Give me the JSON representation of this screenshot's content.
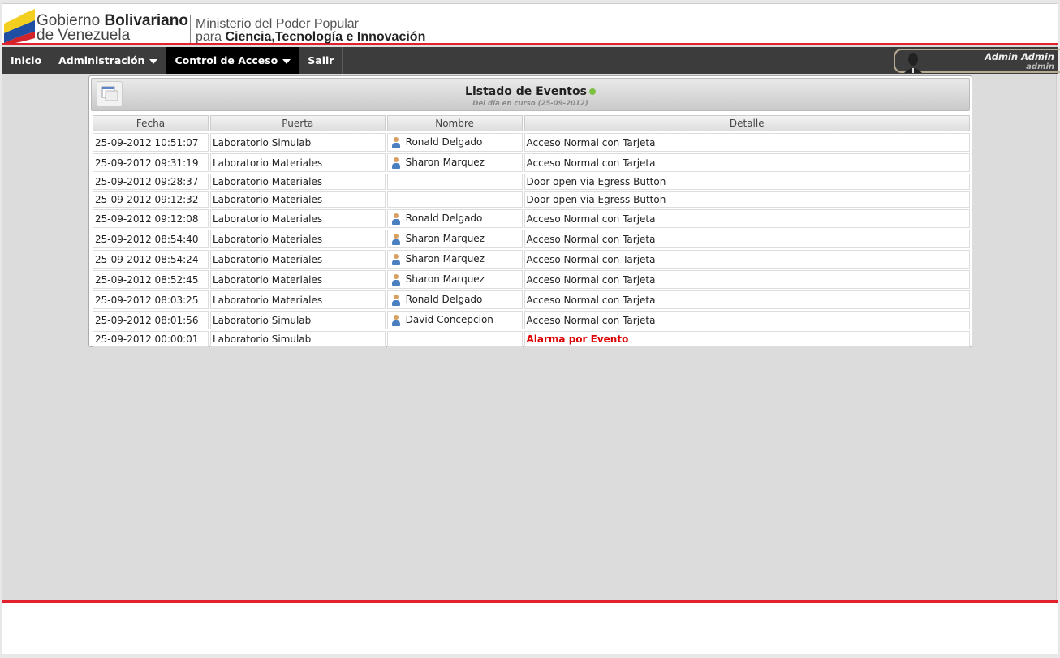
{
  "header": {
    "gov_line1_a": "Gobierno ",
    "gov_line1_b": "Bolivariano",
    "gov_line2": "de Venezuela",
    "min_line1": "Ministerio del Poder Popular",
    "min_line2_a": "para ",
    "min_line2_b": "Ciencia,Tecnología e Innovación"
  },
  "nav": {
    "items": [
      {
        "label": "Inicio"
      },
      {
        "label": "Administración",
        "dropdown": true
      },
      {
        "label": "Control de Acceso",
        "dropdown": true,
        "active": true
      },
      {
        "label": "Salir"
      }
    ]
  },
  "user": {
    "name": "Admin Admin",
    "login": "admin"
  },
  "panel": {
    "title": "Listado de Eventos",
    "subtitle": "Del día en curso (25-09-2012)",
    "status_color": "#7cc142"
  },
  "table": {
    "columns": [
      "Fecha",
      "Puerta",
      "Nombre",
      "Detalle"
    ],
    "rows": [
      {
        "fecha": "25-09-2012 10:51:07",
        "puerta": "Laboratorio Simulab",
        "nombre": "Ronald Delgado",
        "detalle": "Acceso Normal con Tarjeta"
      },
      {
        "fecha": "25-09-2012 09:31:19",
        "puerta": "Laboratorio Materiales",
        "nombre": "Sharon Marquez",
        "detalle": "Acceso Normal con Tarjeta"
      },
      {
        "fecha": "25-09-2012 09:28:37",
        "puerta": "Laboratorio Materiales",
        "nombre": "",
        "detalle": "Door open via Egress Button"
      },
      {
        "fecha": "25-09-2012 09:12:32",
        "puerta": "Laboratorio Materiales",
        "nombre": "",
        "detalle": "Door open via Egress Button"
      },
      {
        "fecha": "25-09-2012 09:12:08",
        "puerta": "Laboratorio Materiales",
        "nombre": "Ronald Delgado",
        "detalle": "Acceso Normal con Tarjeta"
      },
      {
        "fecha": "25-09-2012 08:54:40",
        "puerta": "Laboratorio Materiales",
        "nombre": "Sharon Marquez",
        "detalle": "Acceso Normal con Tarjeta"
      },
      {
        "fecha": "25-09-2012 08:54:24",
        "puerta": "Laboratorio Materiales",
        "nombre": "Sharon Marquez",
        "detalle": "Acceso Normal con Tarjeta"
      },
      {
        "fecha": "25-09-2012 08:52:45",
        "puerta": "Laboratorio Materiales",
        "nombre": "Sharon Marquez",
        "detalle": "Acceso Normal con Tarjeta"
      },
      {
        "fecha": "25-09-2012 08:03:25",
        "puerta": "Laboratorio Materiales",
        "nombre": "Ronald Delgado",
        "detalle": "Acceso Normal con Tarjeta"
      },
      {
        "fecha": "25-09-2012 08:01:56",
        "puerta": "Laboratorio Simulab",
        "nombre": "David Concepcion",
        "detalle": "Acceso Normal con Tarjeta"
      },
      {
        "fecha": "25-09-2012 00:00:01",
        "puerta": "Laboratorio Simulab",
        "nombre": "",
        "detalle": "Alarma por Evento",
        "alarm": true
      }
    ]
  },
  "colors": {
    "accent_red": "#e3212e",
    "nav_bg": "#3c3c3c",
    "alarm": "#dd0000"
  }
}
